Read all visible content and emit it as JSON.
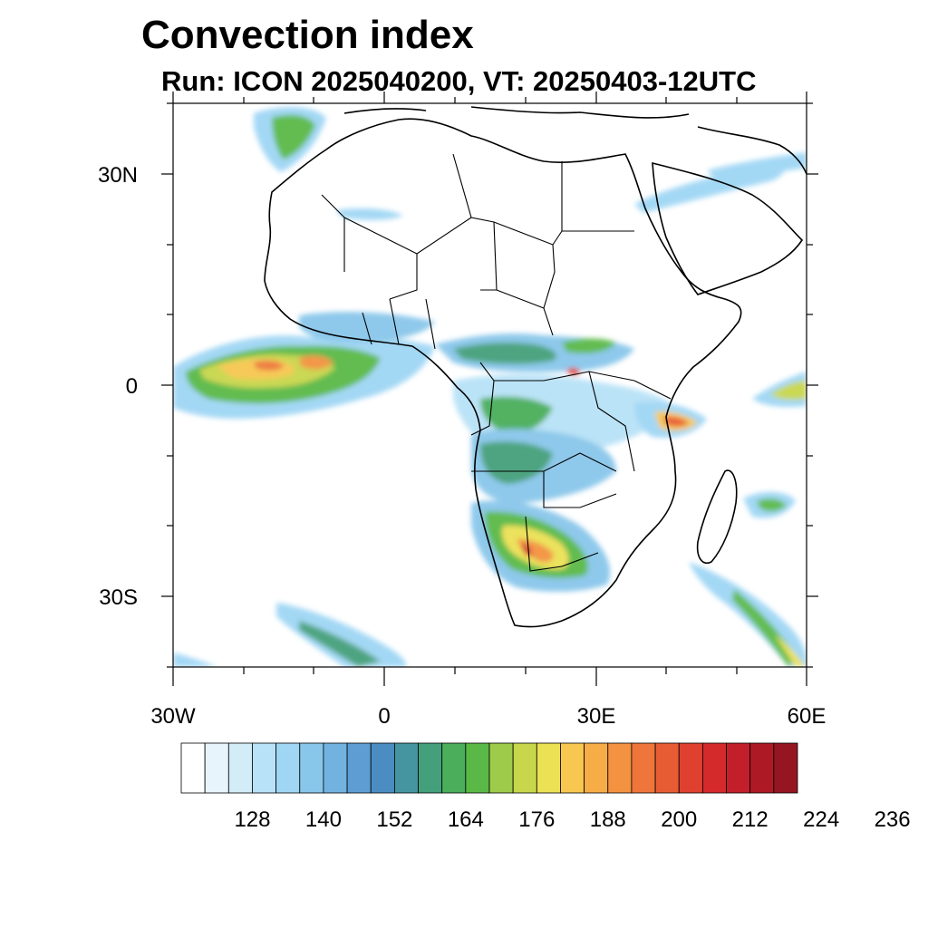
{
  "title": "Convection index",
  "subtitle": "Run: ICON 2025040200,  VT: 20250403-12UTC",
  "map": {
    "lat_labels": [
      "30N",
      "0",
      "30S"
    ],
    "lon_labels": [
      "30W",
      "0",
      "30E",
      "60E"
    ]
  },
  "colorbar": {
    "colors": [
      "#ffffff",
      "#e8f4fc",
      "#d2ecf8",
      "#b8e2f7",
      "#9fd6f4",
      "#88c6ea",
      "#72b2e0",
      "#5e9dd3",
      "#4b8dc2",
      "#4595a0",
      "#44a07a",
      "#4aae5a",
      "#5ab946",
      "#9ecb4a",
      "#c8d64c",
      "#ece155",
      "#f7c74f",
      "#f6ad47",
      "#f39240",
      "#ee763a",
      "#e85c34",
      "#e0402f",
      "#d42a2c",
      "#c21f2a",
      "#ad1a26",
      "#951622"
    ],
    "tick_labels": [
      "128",
      "140",
      "152",
      "164",
      "176",
      "188",
      "200",
      "212",
      "224",
      "236"
    ]
  }
}
